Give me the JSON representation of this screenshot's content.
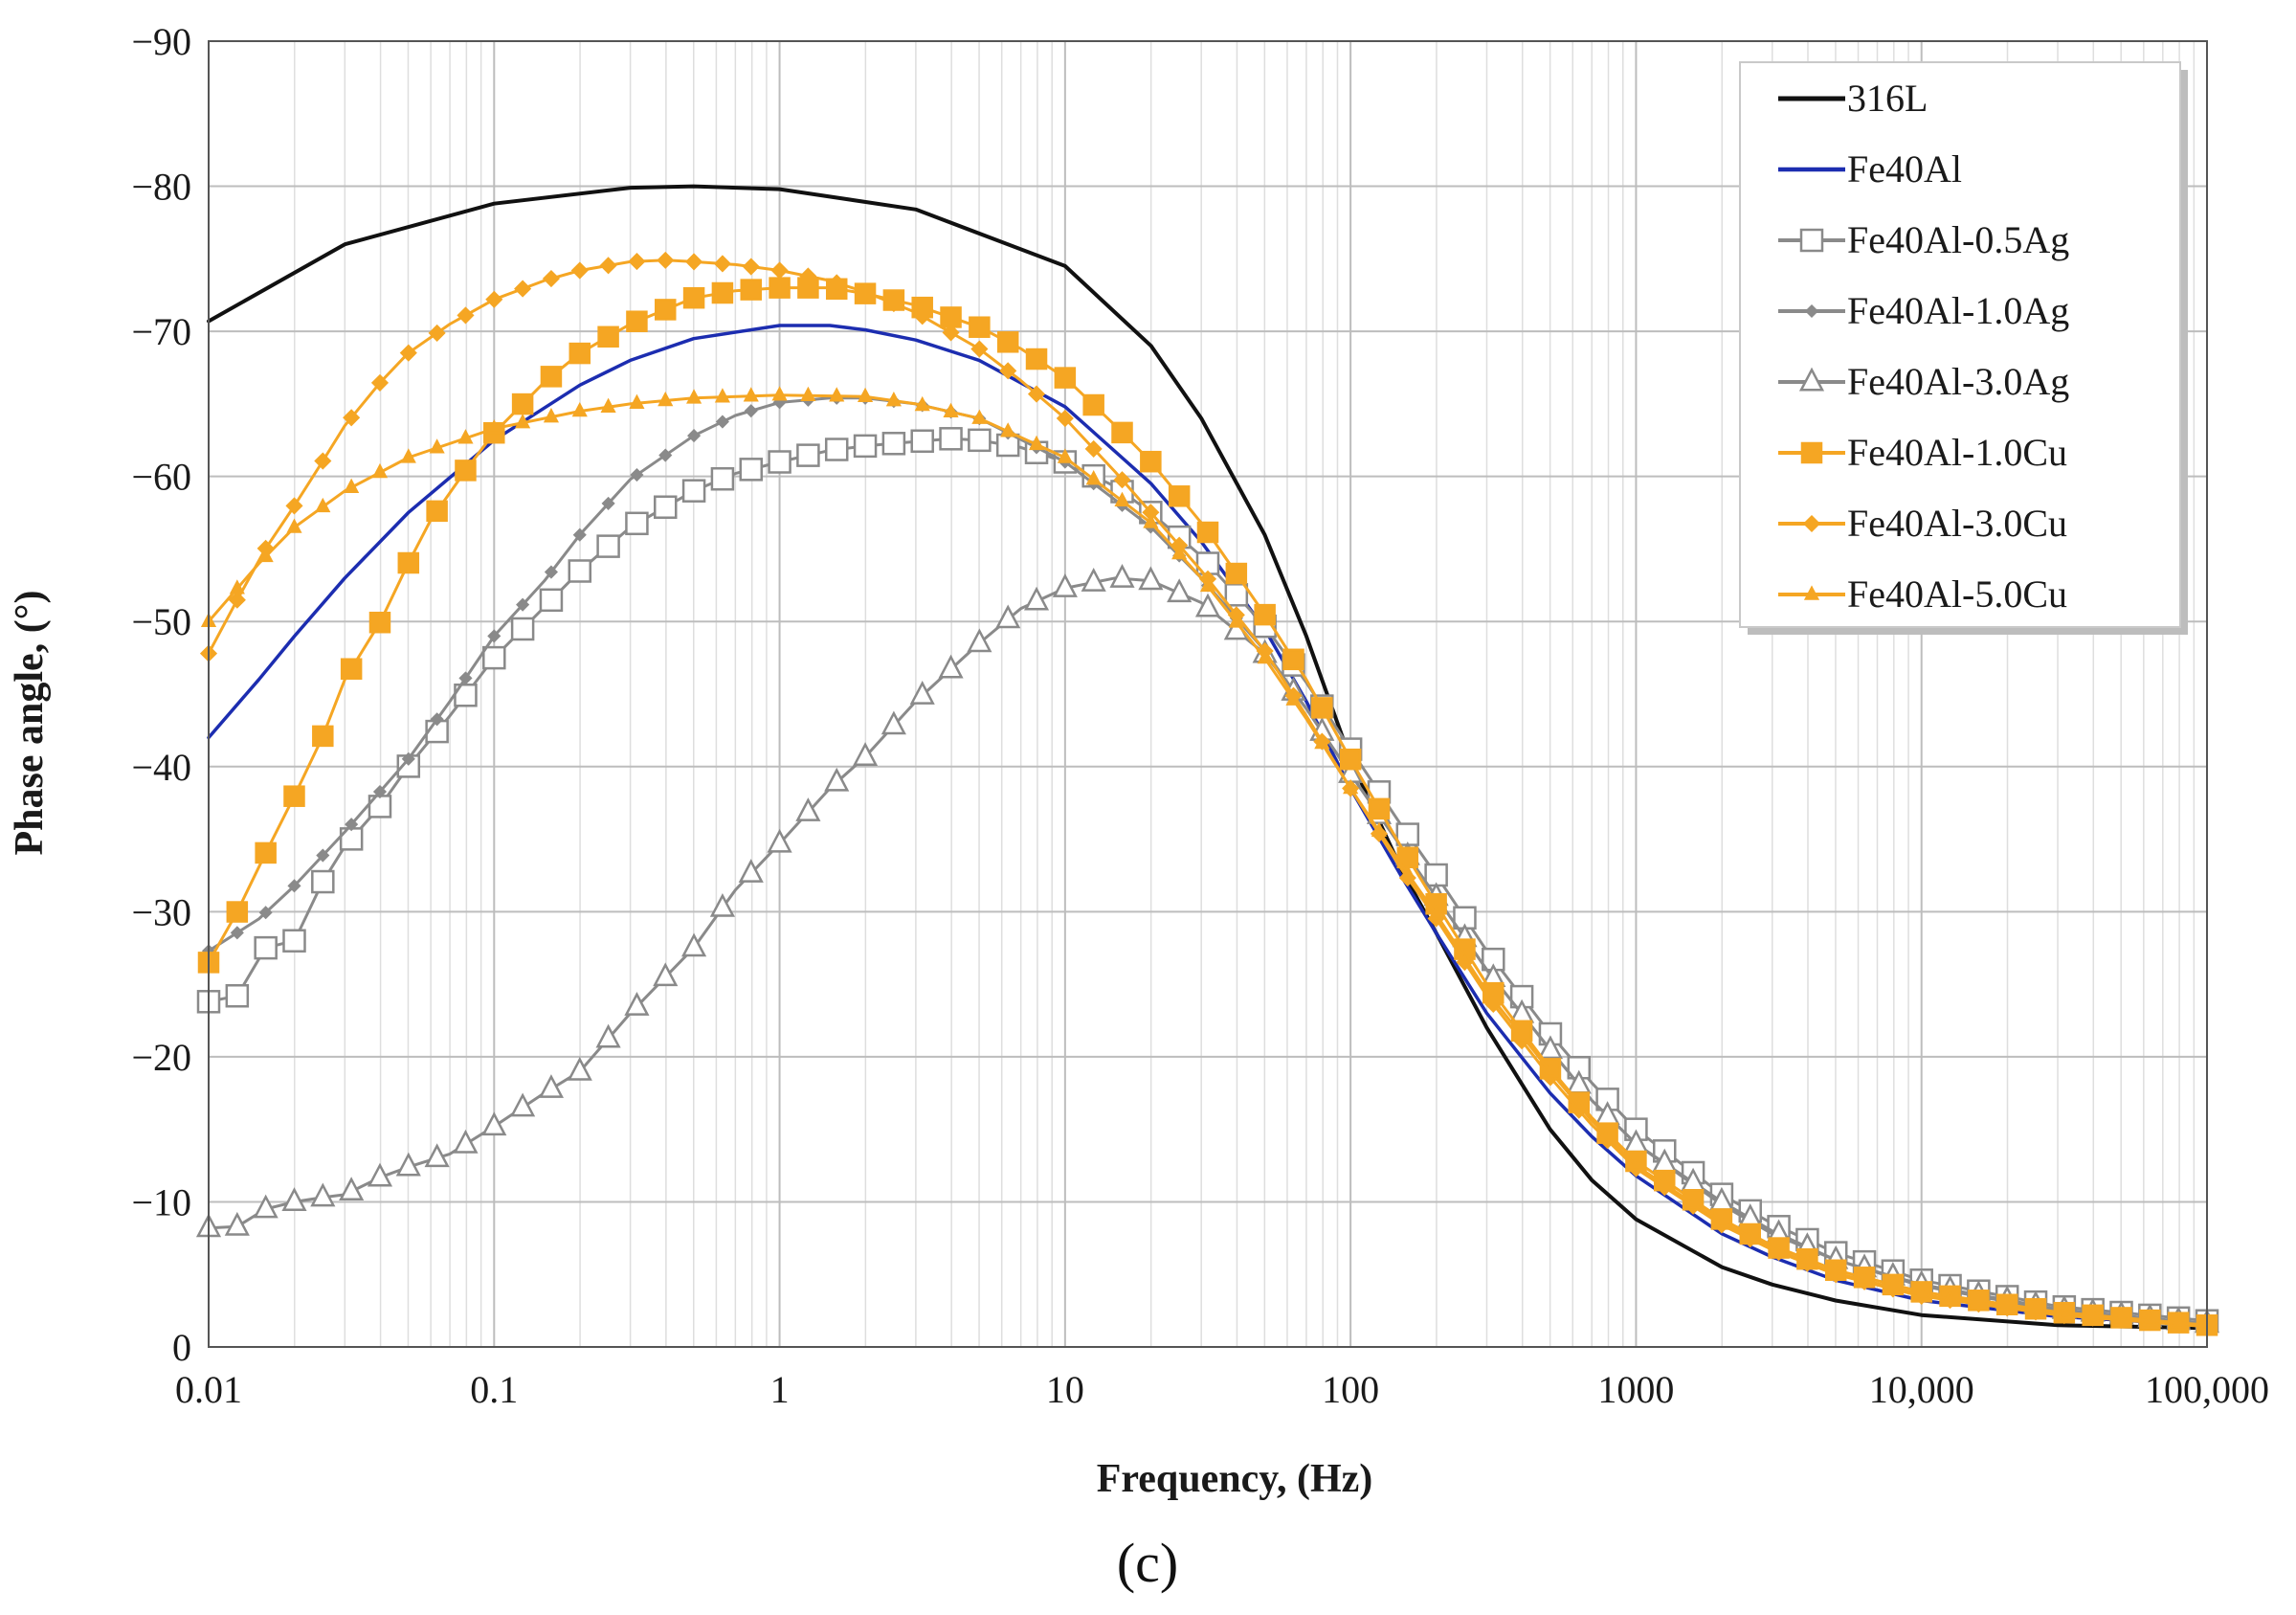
{
  "chart_data": {
    "type": "line",
    "title": "",
    "caption": "(c)",
    "xlabel": "Frequency, (Hz)",
    "ylabel": "Phase angle, (°)",
    "xscale": "log",
    "xlim": [
      0.01,
      100000
    ],
    "ylim": [
      0,
      -90
    ],
    "x_ticks": [
      {
        "value": 0.01,
        "label": "0.01"
      },
      {
        "value": 0.1,
        "label": "0.1"
      },
      {
        "value": 1,
        "label": "1"
      },
      {
        "value": 10,
        "label": "10"
      },
      {
        "value": 100,
        "label": "100"
      },
      {
        "value": 1000,
        "label": "1000"
      },
      {
        "value": 10000,
        "label": "10,000"
      },
      {
        "value": 100000,
        "label": "100,000"
      }
    ],
    "y_ticks": [
      {
        "value": 0,
        "label": "0"
      },
      {
        "value": -10,
        "label": "−10"
      },
      {
        "value": -20,
        "label": "−20"
      },
      {
        "value": -30,
        "label": "−30"
      },
      {
        "value": -40,
        "label": "−40"
      },
      {
        "value": -50,
        "label": "−50"
      },
      {
        "value": -60,
        "label": "−60"
      },
      {
        "value": -70,
        "label": "−70"
      },
      {
        "value": -80,
        "label": "−80"
      },
      {
        "value": -90,
        "label": "−90"
      }
    ],
    "grid": true,
    "legend_position": "top-right",
    "points_per_decade": 10,
    "series": [
      {
        "name": "316L",
        "color": "#111111",
        "marker": "none",
        "width": 4,
        "points": [
          [
            0.01,
            -70.7
          ],
          [
            0.03,
            -76
          ],
          [
            0.1,
            -78.8
          ],
          [
            0.3,
            -79.9
          ],
          [
            0.5,
            -80
          ],
          [
            1,
            -79.8
          ],
          [
            3,
            -78.4
          ],
          [
            10,
            -74.5
          ],
          [
            20,
            -69
          ],
          [
            30,
            -64
          ],
          [
            50,
            -56
          ],
          [
            70,
            -49
          ],
          [
            100,
            -40.5
          ],
          [
            150,
            -33
          ],
          [
            200,
            -28.5
          ],
          [
            300,
            -22
          ],
          [
            500,
            -15
          ],
          [
            700,
            -11.5
          ],
          [
            1000,
            -8.8
          ],
          [
            2000,
            -5.5
          ],
          [
            3000,
            -4.3
          ],
          [
            5000,
            -3.2
          ],
          [
            10000,
            -2.2
          ],
          [
            30000,
            -1.5
          ],
          [
            100000,
            -1.3
          ]
        ]
      },
      {
        "name": "Fe40Al",
        "color": "#1c2db0",
        "marker": "none",
        "width": 3.5,
        "points": [
          [
            0.01,
            -42
          ],
          [
            0.015,
            -46
          ],
          [
            0.02,
            -49
          ],
          [
            0.03,
            -53
          ],
          [
            0.05,
            -57.5
          ],
          [
            0.1,
            -62.5
          ],
          [
            0.2,
            -66.3
          ],
          [
            0.3,
            -68
          ],
          [
            0.5,
            -69.5
          ],
          [
            1,
            -70.4
          ],
          [
            1.5,
            -70.4
          ],
          [
            2,
            -70.1
          ],
          [
            3,
            -69.4
          ],
          [
            5,
            -68
          ],
          [
            10,
            -64.8
          ],
          [
            20,
            -59.5
          ],
          [
            30,
            -55.5
          ],
          [
            50,
            -49.5
          ],
          [
            70,
            -44.5
          ],
          [
            100,
            -38.5
          ],
          [
            150,
            -32.5
          ],
          [
            200,
            -28.5
          ],
          [
            300,
            -23
          ],
          [
            500,
            -17.5
          ],
          [
            700,
            -14.5
          ],
          [
            1000,
            -11.8
          ],
          [
            2000,
            -7.8
          ],
          [
            3000,
            -6.2
          ],
          [
            5000,
            -4.6
          ],
          [
            10000,
            -3.2
          ],
          [
            30000,
            -2.1
          ],
          [
            100000,
            -1.5
          ]
        ]
      },
      {
        "name": "Fe40Al-0.5Ag",
        "color": "#8a8a8a",
        "marker": "square-open",
        "width": 3,
        "points": [
          [
            0.01,
            -23.8
          ],
          [
            0.0126,
            -24.2
          ],
          [
            0.0158,
            -27.5
          ],
          [
            0.02,
            -28
          ],
          [
            0.025,
            -32
          ],
          [
            0.03,
            -34.5
          ],
          [
            0.04,
            -37.3
          ],
          [
            0.05,
            -40
          ],
          [
            0.07,
            -43.5
          ],
          [
            0.1,
            -47.5
          ],
          [
            0.15,
            -51
          ],
          [
            0.2,
            -53.5
          ],
          [
            0.3,
            -56.5
          ],
          [
            0.5,
            -59
          ],
          [
            0.7,
            -60.2
          ],
          [
            1,
            -61
          ],
          [
            1.5,
            -61.8
          ],
          [
            2,
            -62.1
          ],
          [
            3,
            -62.4
          ],
          [
            4,
            -62.6
          ],
          [
            5,
            -62.5
          ],
          [
            7,
            -62
          ],
          [
            10,
            -61
          ],
          [
            15,
            -59.3
          ],
          [
            20,
            -57.5
          ],
          [
            30,
            -54.5
          ],
          [
            50,
            -49.7
          ],
          [
            70,
            -45.8
          ],
          [
            100,
            -41.2
          ],
          [
            150,
            -36
          ],
          [
            200,
            -32.5
          ],
          [
            300,
            -27.3
          ],
          [
            500,
            -21.6
          ],
          [
            700,
            -18.2
          ],
          [
            1000,
            -15
          ],
          [
            2000,
            -10.5
          ],
          [
            3000,
            -8.5
          ],
          [
            5000,
            -6.5
          ],
          [
            10000,
            -4.6
          ],
          [
            30000,
            -2.8
          ],
          [
            100000,
            -1.8
          ]
        ]
      },
      {
        "name": "Fe40Al-1.0Ag",
        "color": "#8a8a8a",
        "marker": "diamond-small",
        "width": 3,
        "points": [
          [
            0.01,
            -27.3
          ],
          [
            0.015,
            -29.5
          ],
          [
            0.02,
            -31.8
          ],
          [
            0.03,
            -35.5
          ],
          [
            0.05,
            -40.5
          ],
          [
            0.07,
            -44.5
          ],
          [
            0.1,
            -49
          ],
          [
            0.15,
            -52.8
          ],
          [
            0.2,
            -56
          ],
          [
            0.3,
            -59.8
          ],
          [
            0.5,
            -62.8
          ],
          [
            0.7,
            -64.2
          ],
          [
            1,
            -65.1
          ],
          [
            1.5,
            -65.4
          ],
          [
            2,
            -65.4
          ],
          [
            3,
            -65
          ],
          [
            5,
            -64
          ],
          [
            10,
            -61
          ],
          [
            20,
            -56.5
          ],
          [
            30,
            -53
          ],
          [
            50,
            -48
          ],
          [
            70,
            -44
          ],
          [
            100,
            -39.5
          ],
          [
            150,
            -34.5
          ],
          [
            200,
            -31
          ],
          [
            300,
            -26
          ],
          [
            500,
            -20.5
          ],
          [
            700,
            -17
          ],
          [
            1000,
            -14
          ],
          [
            2000,
            -9.8
          ],
          [
            3000,
            -7.8
          ],
          [
            5000,
            -6
          ],
          [
            10000,
            -4.2
          ],
          [
            30000,
            -2.5
          ],
          [
            100000,
            -1.6
          ]
        ]
      },
      {
        "name": "Fe40Al-3.0Ag",
        "color": "#8a8a8a",
        "marker": "triangle-open",
        "width": 3,
        "points": [
          [
            0.01,
            -8.2
          ],
          [
            0.0126,
            -8.3
          ],
          [
            0.0158,
            -9.5
          ],
          [
            0.02,
            -10
          ],
          [
            0.025,
            -10.3
          ],
          [
            0.03,
            -10.5
          ],
          [
            0.04,
            -11.7
          ],
          [
            0.05,
            -12.4
          ],
          [
            0.07,
            -13.3
          ],
          [
            0.1,
            -15.2
          ],
          [
            0.15,
            -17.5
          ],
          [
            0.2,
            -19
          ],
          [
            0.3,
            -23
          ],
          [
            0.5,
            -27.5
          ],
          [
            0.7,
            -31.5
          ],
          [
            1,
            -34.7
          ],
          [
            1.5,
            -38.5
          ],
          [
            2,
            -40.7
          ],
          [
            3,
            -44.5
          ],
          [
            5,
            -48.5
          ],
          [
            7,
            -50.9
          ],
          [
            10,
            -52.3
          ],
          [
            15,
            -53
          ],
          [
            20,
            -52.8
          ],
          [
            30,
            -51.3
          ],
          [
            50,
            -47.8
          ],
          [
            70,
            -44
          ],
          [
            100,
            -39.5
          ],
          [
            150,
            -34.5
          ],
          [
            200,
            -31
          ],
          [
            300,
            -26
          ],
          [
            500,
            -20.5
          ],
          [
            700,
            -17
          ],
          [
            1000,
            -14
          ],
          [
            2000,
            -10
          ],
          [
            3000,
            -8
          ],
          [
            5000,
            -6
          ],
          [
            10000,
            -4.3
          ],
          [
            30000,
            -2.6
          ],
          [
            100000,
            -1.6
          ]
        ]
      },
      {
        "name": "Fe40Al-1.0Cu",
        "color": "#f5a623",
        "marker": "square-filled",
        "width": 3,
        "points": [
          [
            0.01,
            -26.5
          ],
          [
            0.0126,
            -30
          ],
          [
            0.0158,
            -34
          ],
          [
            0.02,
            -38
          ],
          [
            0.025,
            -42
          ],
          [
            0.03,
            -46
          ],
          [
            0.04,
            -50
          ],
          [
            0.05,
            -54
          ],
          [
            0.06,
            -57
          ],
          [
            0.08,
            -60.5
          ],
          [
            0.1,
            -63
          ],
          [
            0.15,
            -66.5
          ],
          [
            0.2,
            -68.5
          ],
          [
            0.3,
            -70.5
          ],
          [
            0.5,
            -72.3
          ],
          [
            0.7,
            -72.8
          ],
          [
            1,
            -73
          ],
          [
            1.5,
            -73
          ],
          [
            2,
            -72.6
          ],
          [
            3,
            -71.8
          ],
          [
            5,
            -70.3
          ],
          [
            7,
            -68.8
          ],
          [
            10,
            -66.8
          ],
          [
            15,
            -63.5
          ],
          [
            20,
            -61
          ],
          [
            30,
            -56.8
          ],
          [
            50,
            -50.5
          ],
          [
            70,
            -46
          ],
          [
            100,
            -40.5
          ],
          [
            150,
            -34.5
          ],
          [
            200,
            -30.5
          ],
          [
            300,
            -25
          ],
          [
            500,
            -19.2
          ],
          [
            700,
            -15.8
          ],
          [
            1000,
            -12.8
          ],
          [
            2000,
            -8.8
          ],
          [
            3000,
            -7
          ],
          [
            5000,
            -5.3
          ],
          [
            10000,
            -3.8
          ],
          [
            30000,
            -2.4
          ],
          [
            100000,
            -1.5
          ]
        ]
      },
      {
        "name": "Fe40Al-3.0Cu",
        "color": "#f5a623",
        "marker": "diamond-filled",
        "width": 3,
        "points": [
          [
            0.01,
            -47.8
          ],
          [
            0.0126,
            -51.5
          ],
          [
            0.0158,
            -55
          ],
          [
            0.02,
            -58
          ],
          [
            0.025,
            -61
          ],
          [
            0.03,
            -63.5
          ],
          [
            0.04,
            -66.5
          ],
          [
            0.05,
            -68.5
          ],
          [
            0.07,
            -70.5
          ],
          [
            0.1,
            -72.2
          ],
          [
            0.15,
            -73.5
          ],
          [
            0.2,
            -74.2
          ],
          [
            0.3,
            -74.8
          ],
          [
            0.4,
            -74.9
          ],
          [
            0.5,
            -74.8
          ],
          [
            0.7,
            -74.6
          ],
          [
            1,
            -74.2
          ],
          [
            1.5,
            -73.5
          ],
          [
            2,
            -72.7
          ],
          [
            3,
            -71.3
          ],
          [
            5,
            -68.8
          ],
          [
            7,
            -66.6
          ],
          [
            10,
            -64
          ],
          [
            15,
            -60.3
          ],
          [
            20,
            -57.5
          ],
          [
            30,
            -53.5
          ],
          [
            50,
            -48
          ],
          [
            70,
            -43.5
          ],
          [
            100,
            -38.5
          ],
          [
            150,
            -33
          ],
          [
            200,
            -29.5
          ],
          [
            300,
            -24.2
          ],
          [
            500,
            -18.6
          ],
          [
            700,
            -15.3
          ],
          [
            1000,
            -12.3
          ],
          [
            2000,
            -8.4
          ],
          [
            3000,
            -6.7
          ],
          [
            5000,
            -5
          ],
          [
            10000,
            -3.5
          ],
          [
            30000,
            -2.2
          ],
          [
            100000,
            -1.4
          ]
        ]
      },
      {
        "name": "Fe40Al-5.0Cu",
        "color": "#f5a623",
        "marker": "triangle-filled",
        "width": 3,
        "points": [
          [
            0.01,
            -50
          ],
          [
            0.015,
            -54
          ],
          [
            0.02,
            -56.5
          ],
          [
            0.03,
            -59
          ],
          [
            0.05,
            -61.3
          ],
          [
            0.1,
            -63.3
          ],
          [
            0.2,
            -64.5
          ],
          [
            0.3,
            -65
          ],
          [
            0.5,
            -65.4
          ],
          [
            1,
            -65.6
          ],
          [
            2,
            -65.5
          ],
          [
            3,
            -65
          ],
          [
            5,
            -64
          ],
          [
            10,
            -61.3
          ],
          [
            20,
            -56.8
          ],
          [
            30,
            -53
          ],
          [
            50,
            -47.5
          ],
          [
            70,
            -43.3
          ],
          [
            100,
            -38.5
          ],
          [
            150,
            -33.3
          ],
          [
            200,
            -29.8
          ],
          [
            300,
            -24.5
          ],
          [
            500,
            -19
          ],
          [
            700,
            -15.6
          ],
          [
            1000,
            -12.5
          ],
          [
            2000,
            -8.6
          ],
          [
            3000,
            -6.8
          ],
          [
            5000,
            -5.1
          ],
          [
            10000,
            -3.6
          ],
          [
            30000,
            -2.3
          ],
          [
            100000,
            -1.5
          ]
        ]
      }
    ]
  }
}
